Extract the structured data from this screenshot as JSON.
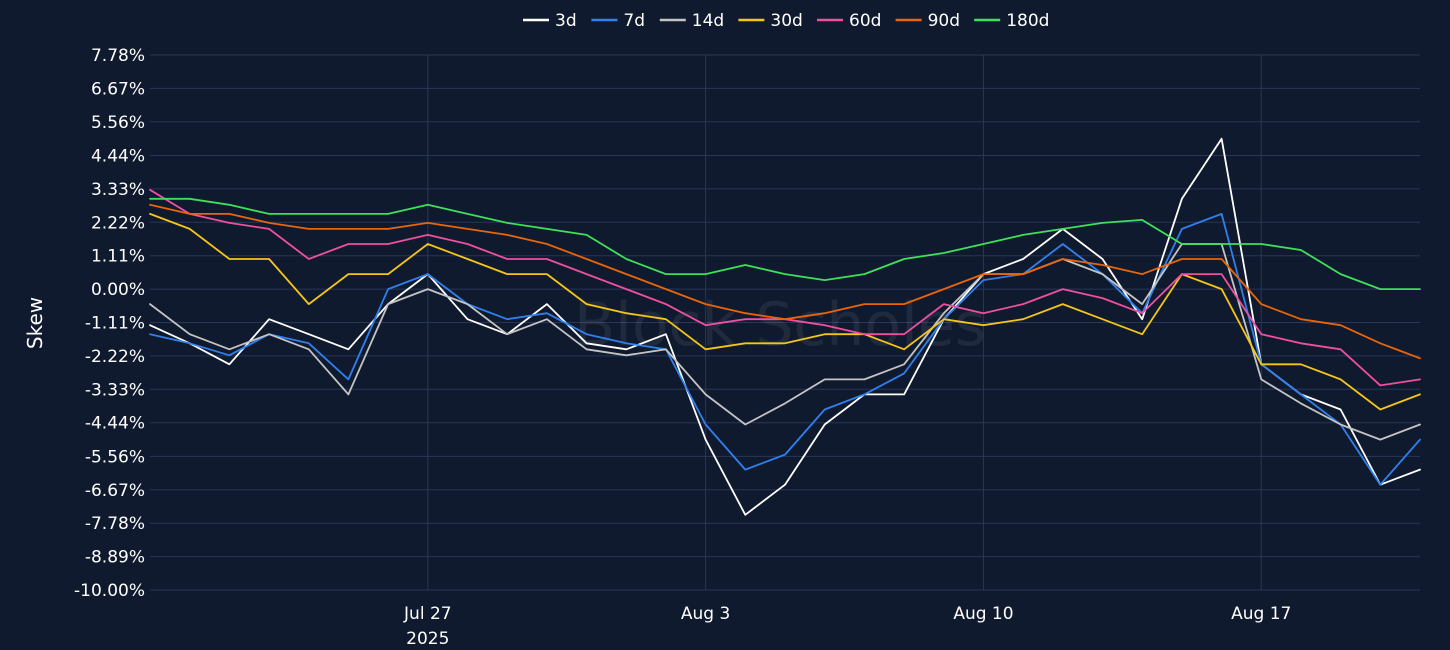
{
  "chart_data": {
    "type": "line",
    "ylabel": "Skew",
    "y_unit": "%",
    "ylim": [
      -10.0,
      7.78
    ],
    "y_ticks": [
      7.78,
      6.67,
      5.56,
      4.44,
      3.33,
      2.22,
      1.11,
      0.0,
      -1.11,
      -2.22,
      -3.33,
      -4.44,
      -5.56,
      -6.67,
      -7.78,
      -8.89,
      -10.0
    ],
    "y_tick_labels": [
      "7.78%",
      "6.67%",
      "5.56%",
      "4.44%",
      "3.33%",
      "2.22%",
      "1.11%",
      "0.00%",
      "-1.11%",
      "-2.22%",
      "-3.33%",
      "-4.44%",
      "-5.56%",
      "-6.67%",
      "-7.78%",
      "-8.89%",
      "-10.00%"
    ],
    "x_range": [
      "2025-07-20",
      "2025-08-21"
    ],
    "x_ticks": [
      {
        "date": "2025-07-27",
        "label": "Jul 27",
        "sublabel": "2025"
      },
      {
        "date": "2025-08-03",
        "label": "Aug 3",
        "sublabel": ""
      },
      {
        "date": "2025-08-10",
        "label": "Aug 10",
        "sublabel": ""
      },
      {
        "date": "2025-08-17",
        "label": "Aug 17",
        "sublabel": ""
      }
    ],
    "grid": true,
    "legend_position": "top",
    "watermark": "Block Scholes",
    "series": [
      {
        "name": "3d",
        "color": "#ffffff",
        "x": [
          "2025-07-20",
          "2025-07-21",
          "2025-07-22",
          "2025-07-23",
          "2025-07-24",
          "2025-07-25",
          "2025-07-26",
          "2025-07-27",
          "2025-07-28",
          "2025-07-29",
          "2025-07-30",
          "2025-07-31",
          "2025-08-01",
          "2025-08-02",
          "2025-08-03",
          "2025-08-04",
          "2025-08-05",
          "2025-08-06",
          "2025-08-07",
          "2025-08-08",
          "2025-08-09",
          "2025-08-10",
          "2025-08-11",
          "2025-08-12",
          "2025-08-13",
          "2025-08-14",
          "2025-08-15",
          "2025-08-16",
          "2025-08-17",
          "2025-08-18",
          "2025-08-19",
          "2025-08-20",
          "2025-08-21"
        ],
        "values": [
          -1.2,
          -1.8,
          -2.5,
          -1.0,
          -1.5,
          -2.0,
          -0.5,
          0.5,
          -1.0,
          -1.5,
          -0.5,
          -1.8,
          -2.0,
          -1.5,
          -5.0,
          -7.5,
          -6.5,
          -4.5,
          -3.5,
          -3.5,
          -1.0,
          0.5,
          1.0,
          2.0,
          1.0,
          -1.0,
          3.0,
          5.0,
          -2.5,
          -3.5,
          -4.0,
          -6.5,
          -6.0
        ]
      },
      {
        "name": "7d",
        "color": "#2f80ed",
        "x": [
          "2025-07-20",
          "2025-07-21",
          "2025-07-22",
          "2025-07-23",
          "2025-07-24",
          "2025-07-25",
          "2025-07-26",
          "2025-07-27",
          "2025-07-28",
          "2025-07-29",
          "2025-07-30",
          "2025-07-31",
          "2025-08-01",
          "2025-08-02",
          "2025-08-03",
          "2025-08-04",
          "2025-08-05",
          "2025-08-06",
          "2025-08-07",
          "2025-08-08",
          "2025-08-09",
          "2025-08-10",
          "2025-08-11",
          "2025-08-12",
          "2025-08-13",
          "2025-08-14",
          "2025-08-15",
          "2025-08-16",
          "2025-08-17",
          "2025-08-18",
          "2025-08-19",
          "2025-08-20",
          "2025-08-21"
        ],
        "values": [
          -1.5,
          -1.8,
          -2.2,
          -1.5,
          -1.8,
          -3.0,
          0.0,
          0.5,
          -0.5,
          -1.0,
          -0.8,
          -1.5,
          -1.8,
          -2.0,
          -4.5,
          -6.0,
          -5.5,
          -4.0,
          -3.5,
          -2.8,
          -1.0,
          0.3,
          0.5,
          1.5,
          0.5,
          -0.8,
          2.0,
          2.5,
          -2.5,
          -3.5,
          -4.5,
          -6.5,
          -5.0
        ]
      },
      {
        "name": "14d",
        "color": "#c4c4c4",
        "x": [
          "2025-07-20",
          "2025-07-21",
          "2025-07-22",
          "2025-07-23",
          "2025-07-24",
          "2025-07-25",
          "2025-07-26",
          "2025-07-27",
          "2025-07-28",
          "2025-07-29",
          "2025-07-30",
          "2025-07-31",
          "2025-08-01",
          "2025-08-02",
          "2025-08-03",
          "2025-08-04",
          "2025-08-05",
          "2025-08-06",
          "2025-08-07",
          "2025-08-08",
          "2025-08-09",
          "2025-08-10",
          "2025-08-11",
          "2025-08-12",
          "2025-08-13",
          "2025-08-14",
          "2025-08-15",
          "2025-08-16",
          "2025-08-17",
          "2025-08-18",
          "2025-08-19",
          "2025-08-20",
          "2025-08-21"
        ],
        "values": [
          -0.5,
          -1.5,
          -2.0,
          -1.5,
          -2.0,
          -3.5,
          -0.5,
          0.0,
          -0.5,
          -1.5,
          -1.0,
          -2.0,
          -2.2,
          -2.0,
          -3.5,
          -4.5,
          -3.8,
          -3.0,
          -3.0,
          -2.5,
          -0.8,
          0.5,
          0.5,
          1.0,
          0.5,
          -0.5,
          1.5,
          1.5,
          -3.0,
          -3.8,
          -4.5,
          -5.0,
          -4.5
        ]
      },
      {
        "name": "30d",
        "color": "#f5c518",
        "x": [
          "2025-07-20",
          "2025-07-21",
          "2025-07-22",
          "2025-07-23",
          "2025-07-24",
          "2025-07-25",
          "2025-07-26",
          "2025-07-27",
          "2025-07-28",
          "2025-07-29",
          "2025-07-30",
          "2025-07-31",
          "2025-08-01",
          "2025-08-02",
          "2025-08-03",
          "2025-08-04",
          "2025-08-05",
          "2025-08-06",
          "2025-08-07",
          "2025-08-08",
          "2025-08-09",
          "2025-08-10",
          "2025-08-11",
          "2025-08-12",
          "2025-08-13",
          "2025-08-14",
          "2025-08-15",
          "2025-08-16",
          "2025-08-17",
          "2025-08-18",
          "2025-08-19",
          "2025-08-20",
          "2025-08-21"
        ],
        "values": [
          2.5,
          2.0,
          1.0,
          1.0,
          -0.5,
          0.5,
          0.5,
          1.5,
          1.0,
          0.5,
          0.5,
          -0.5,
          -0.8,
          -1.0,
          -2.0,
          -1.8,
          -1.8,
          -1.5,
          -1.5,
          -2.0,
          -1.0,
          -1.2,
          -1.0,
          -0.5,
          -1.0,
          -1.5,
          0.5,
          0.0,
          -2.5,
          -2.5,
          -3.0,
          -4.0,
          -3.5
        ]
      },
      {
        "name": "60d",
        "color": "#ee4fa0",
        "x": [
          "2025-07-20",
          "2025-07-21",
          "2025-07-22",
          "2025-07-23",
          "2025-07-24",
          "2025-07-25",
          "2025-07-26",
          "2025-07-27",
          "2025-07-28",
          "2025-07-29",
          "2025-07-30",
          "2025-07-31",
          "2025-08-01",
          "2025-08-02",
          "2025-08-03",
          "2025-08-04",
          "2025-08-05",
          "2025-08-06",
          "2025-08-07",
          "2025-08-08",
          "2025-08-09",
          "2025-08-10",
          "2025-08-11",
          "2025-08-12",
          "2025-08-13",
          "2025-08-14",
          "2025-08-15",
          "2025-08-16",
          "2025-08-17",
          "2025-08-18",
          "2025-08-19",
          "2025-08-20",
          "2025-08-21"
        ],
        "values": [
          3.3,
          2.5,
          2.2,
          2.0,
          1.0,
          1.5,
          1.5,
          1.8,
          1.5,
          1.0,
          1.0,
          0.5,
          0.0,
          -0.5,
          -1.2,
          -1.0,
          -1.0,
          -1.2,
          -1.5,
          -1.5,
          -0.5,
          -0.8,
          -0.5,
          0.0,
          -0.3,
          -0.8,
          0.5,
          0.5,
          -1.5,
          -1.8,
          -2.0,
          -3.2,
          -3.0
        ]
      },
      {
        "name": "90d",
        "color": "#e8650a",
        "x": [
          "2025-07-20",
          "2025-07-21",
          "2025-07-22",
          "2025-07-23",
          "2025-07-24",
          "2025-07-25",
          "2025-07-26",
          "2025-07-27",
          "2025-07-28",
          "2025-07-29",
          "2025-07-30",
          "2025-07-31",
          "2025-08-01",
          "2025-08-02",
          "2025-08-03",
          "2025-08-04",
          "2025-08-05",
          "2025-08-06",
          "2025-08-07",
          "2025-08-08",
          "2025-08-09",
          "2025-08-10",
          "2025-08-11",
          "2025-08-12",
          "2025-08-13",
          "2025-08-14",
          "2025-08-15",
          "2025-08-16",
          "2025-08-17",
          "2025-08-18",
          "2025-08-19",
          "2025-08-20",
          "2025-08-21"
        ],
        "values": [
          2.8,
          2.5,
          2.5,
          2.2,
          2.0,
          2.0,
          2.0,
          2.2,
          2.0,
          1.8,
          1.5,
          1.0,
          0.5,
          0.0,
          -0.5,
          -0.8,
          -1.0,
          -0.8,
          -0.5,
          -0.5,
          0.0,
          0.5,
          0.5,
          1.0,
          0.8,
          0.5,
          1.0,
          1.0,
          -0.5,
          -1.0,
          -1.2,
          -1.8,
          -2.3
        ]
      },
      {
        "name": "180d",
        "color": "#3ee05a",
        "x": [
          "2025-07-20",
          "2025-07-21",
          "2025-07-22",
          "2025-07-23",
          "2025-07-24",
          "2025-07-25",
          "2025-07-26",
          "2025-07-27",
          "2025-07-28",
          "2025-07-29",
          "2025-07-30",
          "2025-07-31",
          "2025-08-01",
          "2025-08-02",
          "2025-08-03",
          "2025-08-04",
          "2025-08-05",
          "2025-08-06",
          "2025-08-07",
          "2025-08-08",
          "2025-08-09",
          "2025-08-10",
          "2025-08-11",
          "2025-08-12",
          "2025-08-13",
          "2025-08-14",
          "2025-08-15",
          "2025-08-16",
          "2025-08-17",
          "2025-08-18",
          "2025-08-19",
          "2025-08-20",
          "2025-08-21"
        ],
        "values": [
          3.0,
          3.0,
          2.8,
          2.5,
          2.5,
          2.5,
          2.5,
          2.8,
          2.5,
          2.2,
          2.0,
          1.8,
          1.0,
          0.5,
          0.5,
          0.8,
          0.5,
          0.3,
          0.5,
          1.0,
          1.2,
          1.5,
          1.8,
          2.0,
          2.2,
          2.3,
          1.5,
          1.5,
          1.5,
          1.3,
          0.5,
          0.0,
          0.0
        ]
      }
    ]
  }
}
